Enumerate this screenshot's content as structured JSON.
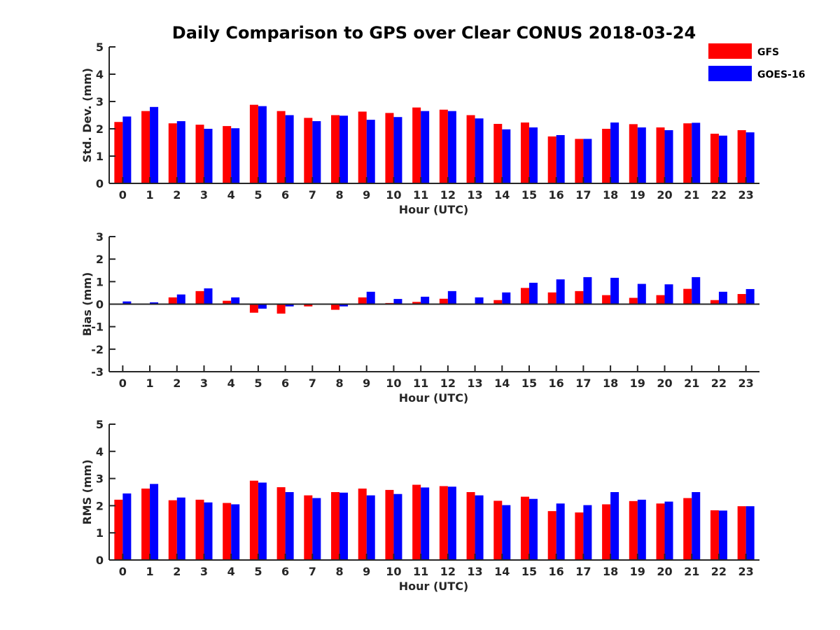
{
  "chart_data": {
    "type": "bar",
    "title": "Daily Comparison to GPS over Clear CONUS 2018-03-24",
    "legend": {
      "placement": "top-right",
      "entries": [
        {
          "name": "GFS",
          "color": "#ff0000"
        },
        {
          "name": "GOES-16",
          "color": "#0000ff"
        }
      ]
    },
    "categories": [
      "0",
      "1",
      "2",
      "3",
      "4",
      "5",
      "6",
      "7",
      "8",
      "9",
      "10",
      "11",
      "12",
      "13",
      "14",
      "15",
      "16",
      "17",
      "18",
      "19",
      "20",
      "21",
      "22",
      "23"
    ],
    "panels": [
      {
        "id": "std",
        "ylabel": "Std. Dev. (mm)",
        "xlabel": "Hour (UTC)",
        "ylim": [
          0,
          5
        ],
        "yticks": [
          0,
          1,
          2,
          3,
          4,
          5
        ],
        "series": [
          {
            "name": "GFS",
            "color": "#ff0000",
            "values": [
              2.25,
              2.65,
              2.2,
              2.15,
              2.1,
              2.88,
              2.65,
              2.4,
              2.5,
              2.63,
              2.58,
              2.78,
              2.7,
              2.5,
              2.18,
              2.23,
              1.72,
              1.63,
              2.0,
              2.17,
              2.05,
              2.2,
              1.82,
              1.95
            ]
          },
          {
            "name": "GOES-16",
            "color": "#0000ff",
            "values": [
              2.45,
              2.8,
              2.28,
              2.0,
              2.02,
              2.83,
              2.5,
              2.28,
              2.48,
              2.33,
              2.43,
              2.65,
              2.65,
              2.38,
              1.98,
              2.05,
              1.77,
              1.63,
              2.23,
              2.05,
              1.95,
              2.22,
              1.75,
              1.87
            ]
          }
        ]
      },
      {
        "id": "bias",
        "ylabel": "Bias (mm)",
        "xlabel": "Hour (UTC)",
        "ylim": [
          -3,
          3
        ],
        "yticks": [
          -3,
          -2,
          -1,
          0,
          1,
          2,
          3
        ],
        "series": [
          {
            "name": "GFS",
            "color": "#ff0000",
            "values": [
              0.03,
              0.03,
              0.3,
              0.58,
              0.15,
              -0.38,
              -0.42,
              -0.1,
              -0.25,
              0.3,
              0.05,
              0.1,
              0.24,
              0.02,
              0.18,
              0.72,
              0.52,
              0.58,
              0.4,
              0.28,
              0.4,
              0.68,
              0.18,
              0.45
            ]
          },
          {
            "name": "GOES-16",
            "color": "#0000ff",
            "values": [
              0.12,
              0.08,
              0.43,
              0.7,
              0.3,
              -0.2,
              -0.1,
              -0.02,
              -0.1,
              0.55,
              0.23,
              0.33,
              0.58,
              0.3,
              0.52,
              0.95,
              1.1,
              1.2,
              1.17,
              0.9,
              0.88,
              1.2,
              0.55,
              0.67
            ]
          }
        ]
      },
      {
        "id": "rms",
        "ylabel": "RMS (mm)",
        "xlabel": "Hour (UTC)",
        "ylim": [
          0,
          5
        ],
        "yticks": [
          0,
          1,
          2,
          3,
          4,
          5
        ],
        "series": [
          {
            "name": "GFS",
            "color": "#ff0000",
            "values": [
              2.22,
              2.63,
              2.2,
              2.22,
              2.1,
              2.92,
              2.68,
              2.38,
              2.5,
              2.63,
              2.58,
              2.77,
              2.72,
              2.5,
              2.18,
              2.33,
              1.8,
              1.75,
              2.05,
              2.17,
              2.08,
              2.28,
              1.83,
              1.98
            ]
          },
          {
            "name": "GOES-16",
            "color": "#0000ff",
            "values": [
              2.45,
              2.8,
              2.3,
              2.12,
              2.05,
              2.85,
              2.5,
              2.28,
              2.48,
              2.38,
              2.43,
              2.67,
              2.7,
              2.38,
              2.02,
              2.25,
              2.08,
              2.02,
              2.5,
              2.22,
              2.15,
              2.5,
              1.82,
              1.98
            ]
          }
        ]
      }
    ]
  }
}
